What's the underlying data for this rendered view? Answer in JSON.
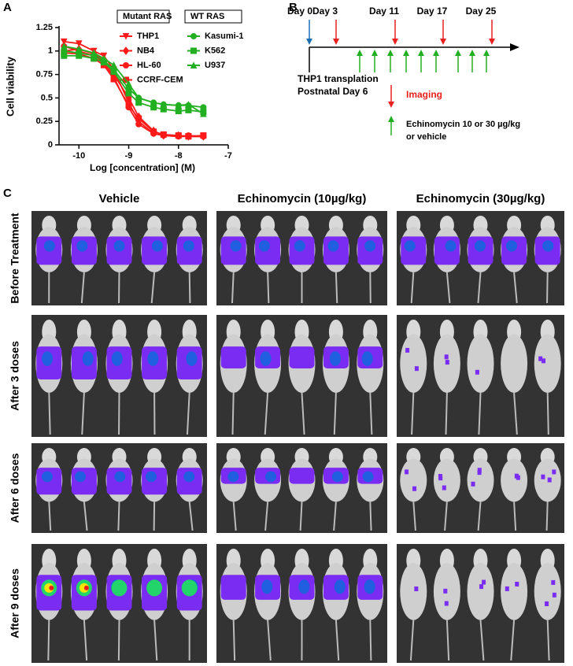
{
  "panel_labels": [
    "A",
    "B",
    "C"
  ],
  "chart_data": {
    "type": "line",
    "x_label": "Log [concentration] (M)",
    "y_label": "Cell viability",
    "x": [
      -10.3,
      -10.0,
      -9.7,
      -9.5,
      -9.3,
      -9.0,
      -8.8,
      -8.5,
      -8.3,
      -8.0,
      -7.8,
      -7.5
    ],
    "xlim": [
      -10.4,
      -7
    ],
    "xticks": [
      -10,
      -9,
      -8,
      -7
    ],
    "ylim": [
      0,
      1.25
    ],
    "yticks": [
      0,
      0.25,
      0.5,
      0.75,
      1,
      1.25
    ],
    "groups": [
      {
        "title": "Mutant RAS",
        "series": [
          {
            "name": "THP1",
            "color": "#ff1a1a",
            "marker": "triangle-down",
            "values": [
              1.1,
              1.08,
              1.0,
              0.95,
              0.8,
              0.45,
              0.25,
              0.12,
              0.1,
              0.09,
              0.09,
              0.09
            ]
          },
          {
            "name": "NB4",
            "color": "#ff1a1a",
            "marker": "diamond",
            "values": [
              1.0,
              1.02,
              0.97,
              0.9,
              0.75,
              0.5,
              0.3,
              0.15,
              0.1,
              0.1,
              0.09,
              0.09
            ]
          },
          {
            "name": "HL-60",
            "color": "#ff1a1a",
            "marker": "circle",
            "values": [
              1.05,
              1.0,
              0.95,
              0.88,
              0.72,
              0.4,
              0.22,
              0.12,
              0.1,
              0.09,
              0.1,
              0.09
            ]
          },
          {
            "name": "CCRF-CEM",
            "color": "#ff1a1a",
            "marker": "square",
            "values": [
              0.98,
              0.97,
              0.92,
              0.85,
              0.7,
              0.42,
              0.28,
              0.14,
              0.11,
              0.1,
              0.09,
              0.1
            ]
          }
        ]
      },
      {
        "title": "WT RAS",
        "series": [
          {
            "name": "Kasumi-1",
            "color": "#22b022",
            "marker": "circle",
            "values": [
              1.0,
              0.98,
              0.95,
              0.9,
              0.8,
              0.6,
              0.5,
              0.45,
              0.43,
              0.42,
              0.42,
              0.4
            ]
          },
          {
            "name": "K562",
            "color": "#22b022",
            "marker": "square",
            "values": [
              0.95,
              0.95,
              0.92,
              0.88,
              0.78,
              0.55,
              0.45,
              0.4,
              0.38,
              0.36,
              0.37,
              0.35
            ]
          },
          {
            "name": "U937",
            "color": "#22b022",
            "marker": "triangle-up",
            "values": [
              1.05,
              1.02,
              0.98,
              0.92,
              0.85,
              0.65,
              0.5,
              0.45,
              0.43,
              0.42,
              0.43,
              0.33
            ]
          }
        ]
      }
    ]
  },
  "timeline": {
    "days": [
      "Day 0",
      "Day 3",
      "Day 11",
      "Day 17",
      "Day 25"
    ],
    "start_label": [
      "THP1 transplation",
      "Postnatal Day 6"
    ],
    "imaging_label": "Imaging",
    "treatment_label": [
      "Echinomycin 10 or 30 µg/kg",
      "or vehicle"
    ]
  },
  "imaging": {
    "columns": [
      "Vehicle",
      "Echinomycin (10µg/kg)",
      "Echinomycin (30µg/kg)"
    ],
    "rows": [
      "Before Treatment",
      "After 3 doses",
      "After 6 doses",
      "After 9 doses"
    ]
  }
}
